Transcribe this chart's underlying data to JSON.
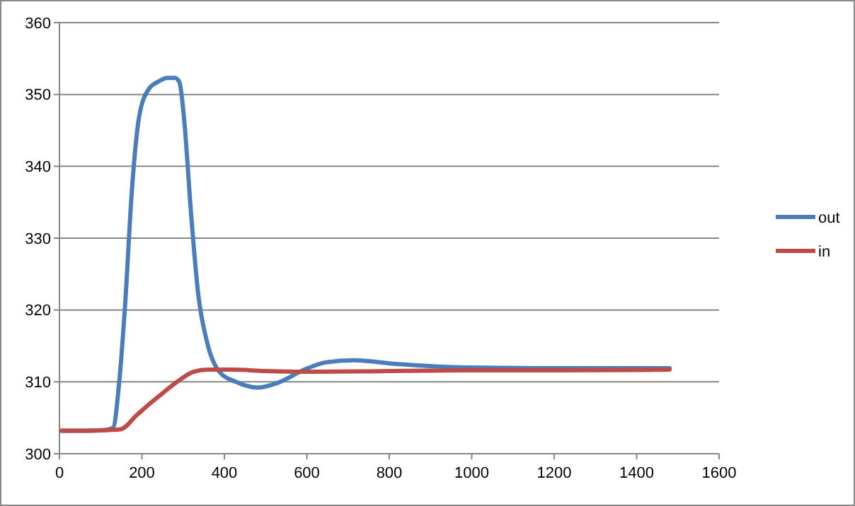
{
  "chart_data": {
    "type": "line",
    "xlim": [
      0,
      1600
    ],
    "ylim": [
      300,
      360
    ],
    "xticks": [
      0,
      200,
      400,
      600,
      800,
      1000,
      1200,
      1400,
      1600
    ],
    "yticks": [
      300,
      310,
      320,
      330,
      340,
      350,
      360
    ],
    "grid": "y",
    "legend": "right",
    "marker": "none",
    "line_style": "solid",
    "series": [
      {
        "name": "out",
        "color": "#4a7ebb",
        "x": [
          5,
          60,
          110,
          130,
          145,
          159,
          176,
          193,
          216,
          240,
          262,
          280,
          291,
          302,
          319,
          336,
          359,
          388,
          428,
          480,
          531,
          594,
          645,
          714,
          817,
          989,
          1200,
          1480
        ],
        "values": [
          303.2,
          303.2,
          303.3,
          303.6,
          310,
          320.5,
          336.9,
          346.8,
          350.7,
          351.8,
          352.3,
          352.3,
          351.7,
          346.8,
          333.6,
          322.5,
          315.3,
          311.4,
          310,
          309.2,
          309.9,
          311.7,
          312.7,
          313,
          312.5,
          312,
          311.9,
          311.9
        ]
      },
      {
        "name": "in",
        "color": "#be4b48",
        "x": [
          5,
          60,
          120,
          148,
          188,
          220,
          256,
          290,
          325,
          360,
          420,
          500,
          600,
          800,
          1000,
          1200,
          1480
        ],
        "values": [
          303.2,
          303.2,
          303.3,
          303.4,
          305.4,
          307,
          308.7,
          310.2,
          311.4,
          311.7,
          311.7,
          311.5,
          311.4,
          311.5,
          311.6,
          311.6,
          311.7
        ]
      }
    ]
  }
}
